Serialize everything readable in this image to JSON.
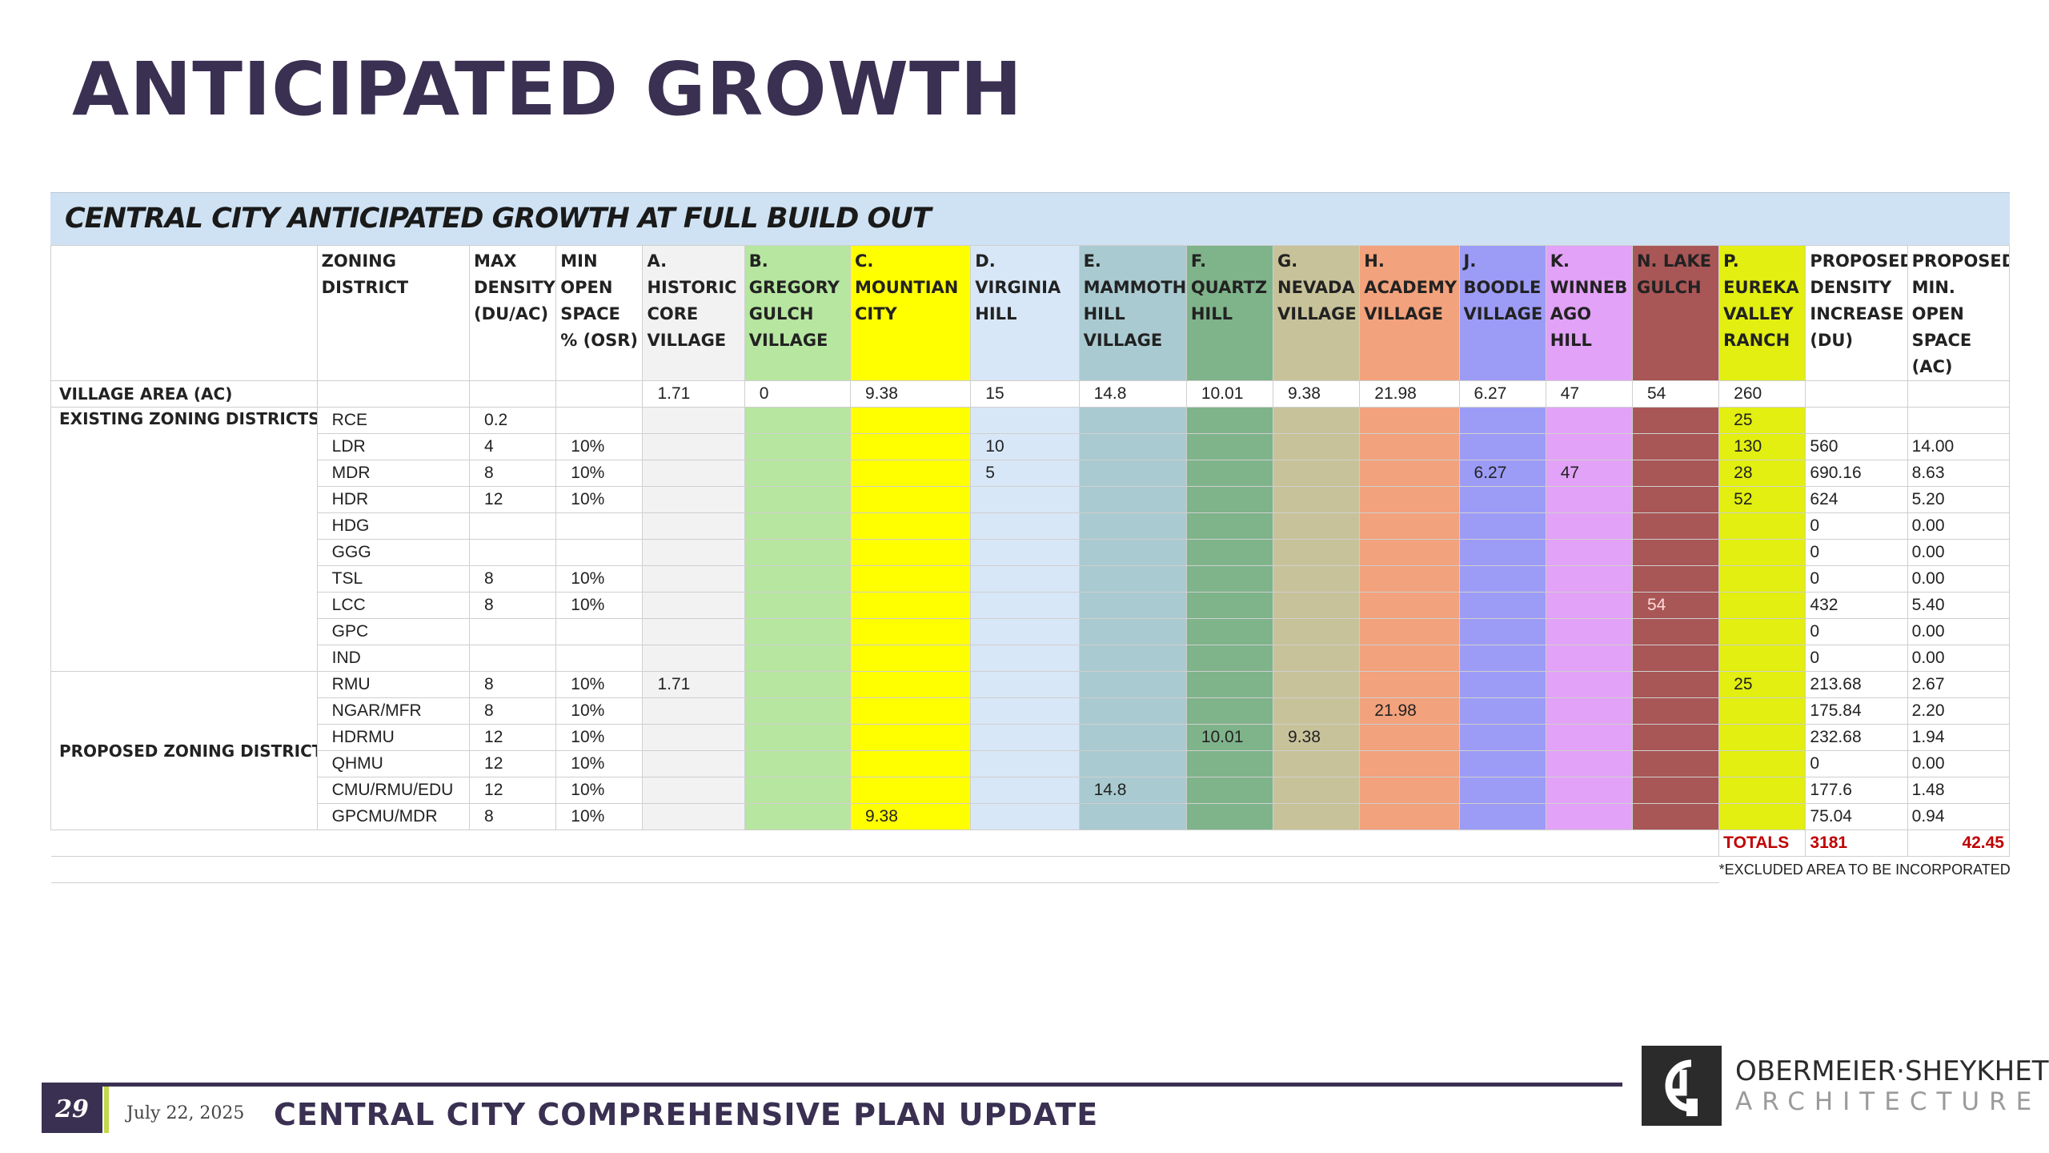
{
  "title": "ANTICIPATED GROWTH",
  "table": {
    "banner": "CENTRAL CITY ANTICIPATED GROWTH AT FULL BUILD OUT",
    "headers": [
      "",
      "ZONING DISTRICT",
      "MAX DENSITY (DU/AC)",
      "MIN OPEN SPACE % (OSR)",
      "A. HISTORIC CORE VILLAGE",
      "B. GREGORY GULCH VILLAGE",
      "C. MOUNTIAN CITY",
      "D. VIRGINIA HILL",
      "E. MAMMOTH HILL VILLAGE",
      "F. QUARTZ HILL",
      "G. NEVADA VILLAGE",
      "H. ACADEMY VILLAGE",
      "J. BOODLE VILLAGE",
      "K. WINNEB AGO HILL",
      "N. LAKE GULCH",
      "P. EUREKA VALLEY RANCH",
      "PROPOSED DENSITY INCREASE (DU)",
      "PROPOSED MIN. OPEN SPACE (AC)"
    ],
    "village_area": {
      "label": "VILLAGE AREA (AC)",
      "values": [
        "1.71",
        "0",
        "9.38",
        "15",
        "14.8",
        "10.01",
        "9.38",
        "21.98",
        "6.27",
        "47",
        "54",
        "260"
      ]
    },
    "existing_label": "EXISTING ZONING DISTRICTS",
    "proposed_label": "PROPOSED ZONING DISTRICT",
    "existing_rows": [
      {
        "zone": "RCE",
        "density": "0.2",
        "osr": "",
        "cells": [
          "",
          "",
          "",
          "",
          "",
          "",
          "",
          "",
          "",
          "",
          "",
          "25"
        ],
        "du": "",
        "ac": ""
      },
      {
        "zone": "LDR",
        "density": "4",
        "osr": "10%",
        "cells": [
          "",
          "",
          "",
          "10",
          "",
          "",
          "",
          "",
          "",
          "",
          "",
          "130"
        ],
        "du": "560",
        "ac": "14.00"
      },
      {
        "zone": "MDR",
        "density": "8",
        "osr": "10%",
        "cells": [
          "",
          "",
          "",
          "5",
          "",
          "",
          "",
          "",
          "6.27",
          "47",
          "",
          "28"
        ],
        "du": "690.16",
        "ac": "8.63"
      },
      {
        "zone": "HDR",
        "density": "12",
        "osr": "10%",
        "cells": [
          "",
          "",
          "",
          "",
          "",
          "",
          "",
          "",
          "",
          "",
          "",
          "52"
        ],
        "du": "624",
        "ac": "5.20"
      },
      {
        "zone": "HDG",
        "density": "",
        "osr": "",
        "cells": [
          "",
          "",
          "",
          "",
          "",
          "",
          "",
          "",
          "",
          "",
          "",
          ""
        ],
        "du": "0",
        "ac": "0.00"
      },
      {
        "zone": "GGG",
        "density": "",
        "osr": "",
        "cells": [
          "",
          "",
          "",
          "",
          "",
          "",
          "",
          "",
          "",
          "",
          "",
          ""
        ],
        "du": "0",
        "ac": "0.00"
      },
      {
        "zone": "TSL",
        "density": "8",
        "osr": "10%",
        "cells": [
          "",
          "",
          "",
          "",
          "",
          "",
          "",
          "",
          "",
          "",
          "",
          ""
        ],
        "du": "0",
        "ac": "0.00"
      },
      {
        "zone": "LCC",
        "density": "8",
        "osr": "10%",
        "cells": [
          "",
          "",
          "",
          "",
          "",
          "",
          "",
          "",
          "",
          "",
          "54",
          ""
        ],
        "du": "432",
        "ac": "5.40"
      },
      {
        "zone": "GPC",
        "density": "",
        "osr": "",
        "cells": [
          "",
          "",
          "",
          "",
          "",
          "",
          "",
          "",
          "",
          "",
          "",
          ""
        ],
        "du": "0",
        "ac": "0.00"
      },
      {
        "zone": "IND",
        "density": "",
        "osr": "",
        "cells": [
          "",
          "",
          "",
          "",
          "",
          "",
          "",
          "",
          "",
          "",
          "",
          ""
        ],
        "du": "0",
        "ac": "0.00"
      }
    ],
    "proposed_rows": [
      {
        "zone": "RMU",
        "density": "8",
        "osr": "10%",
        "cells": [
          "1.71",
          "",
          "",
          "",
          "",
          "",
          "",
          "",
          "",
          "",
          "",
          "25"
        ],
        "du": "213.68",
        "ac": "2.67"
      },
      {
        "zone": "NGAR/MFR",
        "density": "8",
        "osr": "10%",
        "cells": [
          "",
          "",
          "",
          "",
          "",
          "",
          "",
          "21.98",
          "",
          "",
          "",
          ""
        ],
        "du": "175.84",
        "ac": "2.20"
      },
      {
        "zone": "HDRMU",
        "density": "12",
        "osr": "10%",
        "cells": [
          "",
          "",
          "",
          "",
          "",
          "10.01",
          "9.38",
          "",
          "",
          "",
          "",
          ""
        ],
        "du": "232.68",
        "ac": "1.94"
      },
      {
        "zone": "QHMU",
        "density": "12",
        "osr": "10%",
        "cells": [
          "",
          "",
          "",
          "",
          "",
          "",
          "",
          "",
          "",
          "",
          "",
          ""
        ],
        "du": "0",
        "ac": "0.00"
      },
      {
        "zone": "CMU/RMU/EDU",
        "density": "12",
        "osr": "10%",
        "cells": [
          "",
          "",
          "",
          "",
          "14.8",
          "",
          "",
          "",
          "",
          "",
          "",
          ""
        ],
        "du": "177.6",
        "ac": "1.48"
      },
      {
        "zone": "GPCMU/MDR",
        "density": "8",
        "osr": "10%",
        "cells": [
          "",
          "",
          "9.38",
          "",
          "",
          "",
          "",
          "",
          "",
          "",
          "",
          ""
        ],
        "du": "75.04",
        "ac": "0.94"
      }
    ],
    "totals": {
      "label": "TOTALS",
      "du": "3181",
      "ac": "42.45"
    },
    "footnote": "*EXCLUDED AREA TO BE INCORPORATED",
    "column_colors": [
      "#f2f2f2",
      "#b6e6a0",
      "#ffff00",
      "#d8e7f7",
      "#a9cad0",
      "#7fb38a",
      "#c8c29a",
      "#f2a27c",
      "#9c9cf7",
      "#e2a2f7",
      "#a95656",
      "#e2ef10"
    ]
  },
  "footer": {
    "page_number": "29",
    "date": "July 22, 2025",
    "title": "CENTRAL CITY COMPREHENSIVE PLAN UPDATE",
    "logo_name": "OBERMEIER·SHEYKHET",
    "logo_sub": "ARCHITECTURE",
    "brand_color": "#3a3052"
  }
}
